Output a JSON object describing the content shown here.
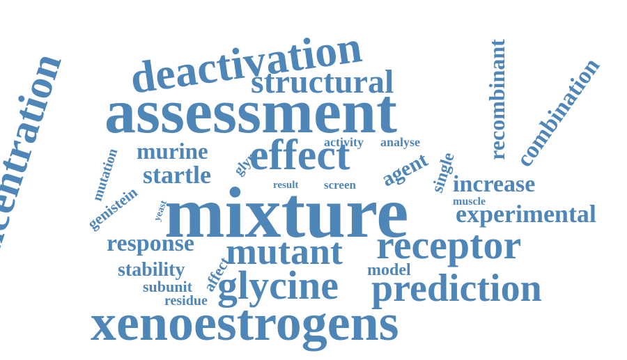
{
  "cloud": {
    "color": "#4f86b8",
    "words": {
      "concentration": "concentration",
      "deactivation": "deactivation",
      "structural": "structural",
      "assessment": "assessment",
      "recombinant": "recombinant",
      "combination": "combination",
      "murine": "murine",
      "glyr": "glyr",
      "effect": "effect",
      "activity": "activity",
      "analyse": "analyse",
      "agent": "agent",
      "single": "single",
      "mutation": "mutation",
      "startle": "startle",
      "result": "result",
      "screen": "screen",
      "increase": "increase",
      "genistein": "genistein",
      "yeast": "yeast",
      "mixture": "mixture",
      "muscle": "muscle",
      "experimental": "experimental",
      "response": "response",
      "affect": "affect",
      "mutant": "mutant",
      "receptor": "receptor",
      "stability": "stability",
      "model": "model",
      "subunit": "subunit",
      "glycine": "glycine",
      "prediction": "prediction",
      "residue": "residue",
      "xenoestrogens": "xenoestrogens"
    }
  }
}
